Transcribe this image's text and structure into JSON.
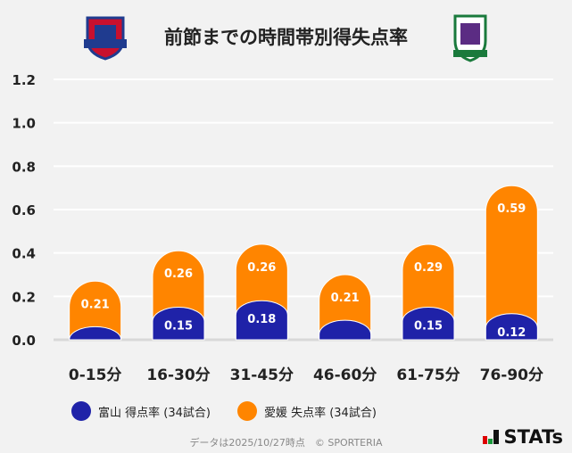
{
  "header": {
    "title": "前節までの時間帯別得失点率",
    "home_logo": "toyama-crest",
    "away_logo": "ehime-crest"
  },
  "chart_data": {
    "type": "bar",
    "stacked": true,
    "title": "前節までの時間帯別得失点率",
    "categories": [
      "0-15分",
      "16-30分",
      "31-45分",
      "46-60分",
      "61-75分",
      "76-90分"
    ],
    "series": [
      {
        "name": "富山 得点率 (34試合)",
        "color": "#1f22a8",
        "values": [
          0.06,
          0.15,
          0.18,
          0.09,
          0.15,
          0.12
        ],
        "labels": [
          null,
          "0.15",
          "0.18",
          null,
          "0.15",
          "0.12"
        ]
      },
      {
        "name": "愛媛 失点率 (34試合)",
        "color": "#ff8500",
        "values": [
          0.21,
          0.26,
          0.26,
          0.21,
          0.29,
          0.59
        ],
        "labels": [
          "0.21",
          "0.26",
          "0.26",
          "0.21",
          "0.29",
          "0.59"
        ]
      }
    ],
    "yticks": [
      "0.0",
      "0.2",
      "0.4",
      "0.6",
      "0.8",
      "1.0",
      "1.2"
    ],
    "ylim": [
      0,
      1.2
    ],
    "grid": true,
    "legend_position": "bottom"
  },
  "footer": {
    "note": "データは2025/10/27時点　© SPORTERIA",
    "brand": "STATs"
  }
}
